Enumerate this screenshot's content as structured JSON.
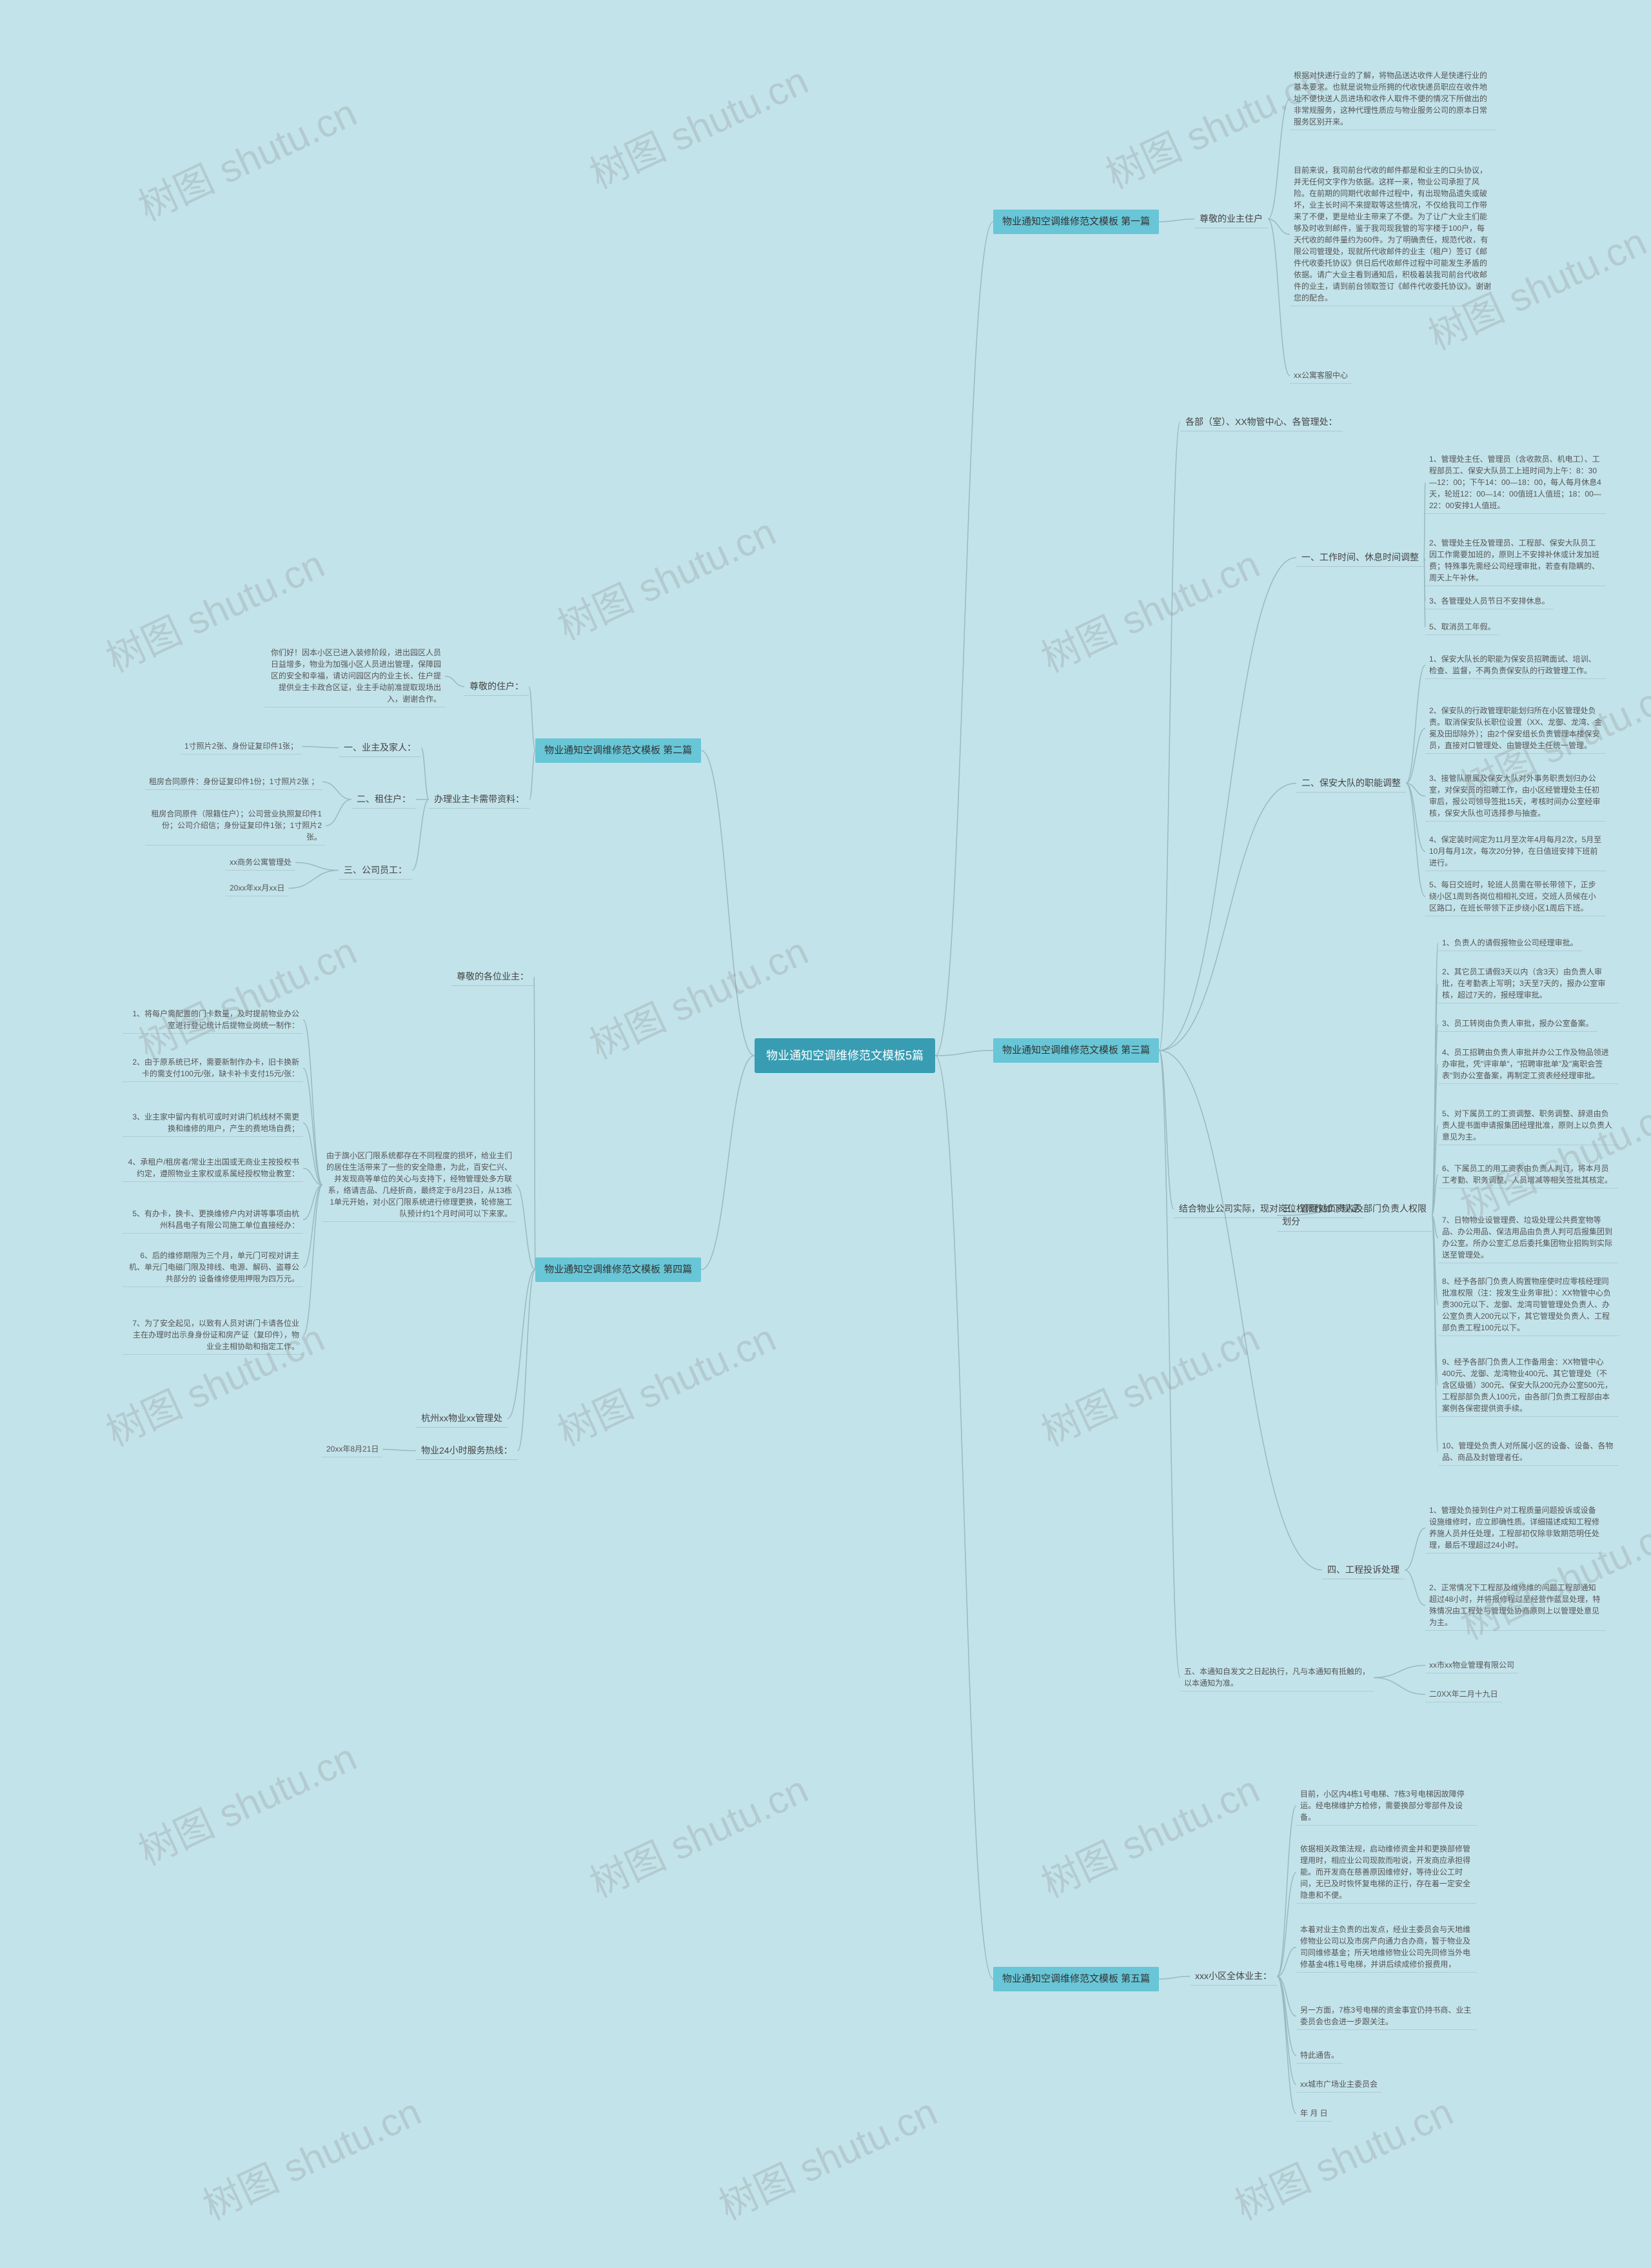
{
  "colors": {
    "background": "#c3e3ea",
    "root_bg": "#389db3",
    "root_fg": "#ffffff",
    "branch_bg": "#68c6d7",
    "branch_fg": "#333333",
    "text": "#555555",
    "connector": "#9ab8bf",
    "watermark": "rgba(140,140,140,0.28)"
  },
  "watermark_text": "树图 shutu.cn",
  "watermark_rotation": -25,
  "root": "物业通知空调维修范文模板5篇",
  "branches": [
    {
      "id": "b1",
      "label": "物业通知空调维修范文模板 第一篇",
      "side": "right",
      "children": [
        {
          "id": "b1s1",
          "label": "尊敬的业主住户",
          "leaves": [
            "根据对快递行业的了解，将物品送达收件人是快递行业的基本要求。也就是说物业所拥的代收快递员职应在收件地址不便快送人员进场和收件人取件不便的情况下所做出的非常规服务，这种代理性质应与物业服务公司的原本日常服务区别开来。",
            "目前来说，我司前台代收的邮件都是和业主的口头协议，并无任何文字作为依据。这样一来，物业公司承担了风险。在前期的同期代收邮件过程中，有出现物品遗失或破坏，业主长时间不来提取等这些情况，不仅给我司工作带来了不便，更是给业主带来了不便。为了让广大业主们能够及时收到邮件，鉴于我司现我管的写字楼于100户，每天代收的邮件量约为60件。为了明确责任，规范代收，有限公司管理处，现就所代收邮件的业主（租户）签订《邮件代收委托协议》供日后代收邮件过程中可能发生矛盾的依据。请广大业主看到通知后，积极着装我司前台代收邮件的业主，请到前台领取签订《邮件代收委托协议》。谢谢您的配合。",
            "xx公寓客服中心"
          ]
        }
      ]
    },
    {
      "id": "b2",
      "label": "物业通知空调维修范文模板 第二篇",
      "side": "left",
      "children": [
        {
          "id": "b2s1",
          "label": "尊敬的住户：",
          "leaves": [
            "你们好！因本小区已进入装修阶段，进出园区人员日益增多，物业为加强小区人员进出管理，保障园区的安全和幸福，请访问园区内的业主长、住户提提供业主卡政合区证，业主手动前准提取现场出入，谢谢合作。"
          ]
        },
        {
          "id": "b2s2",
          "label": "办理业主卡需带资料：",
          "leaves_grouped": [
            {
              "sub": "一、业主及家人：",
              "leaves": [
                "1寸照片2张、身份证复印件1张；"
              ]
            },
            {
              "sub": "二、租住户：",
              "leaves": [
                "租房合同原件：身份证复印件1份；1寸照片2张 ；",
                "租房合同原件（限籍住户）；公司营业执照复印件1份；公司介绍信；身份证复印件1张；1寸照片2张。"
              ]
            },
            {
              "sub": "三、公司员工：",
              "leaves": [
                "xx商务公寓管理处",
                "20xx年xx月xx日"
              ]
            }
          ]
        }
      ]
    },
    {
      "id": "b3",
      "label": "物业通知空调维修范文模板 第三篇",
      "side": "right",
      "children": [
        {
          "id": "b3s0",
          "label": "各部（室）、XX物管中心、各管理处：",
          "leaves": []
        },
        {
          "id": "b3s1",
          "label": "一、工作时间、休息时间调整",
          "leaves": [
            "1、管理处主任、管理员（含收款员、机电工）、工程部员工、保安大队员工上班时间为上午：8：30—12：00；下午14：00—18：00，每人每月休息4天，轮班12：00—14：00值班1人值班；18：00—22：00安排1人值班。",
            "2、管理处主任及管理员、工程部、保安大队员工因工作需要加班的，原则上不安排补休或计发加班费；特殊事先需经公司经理审批，若查有隐瞒的、周天上午补休。",
            "3、各管理处人员节日不安排休息。",
            "5、取消员工年假。"
          ]
        },
        {
          "id": "b3s2",
          "label": "二、保安大队的职能调整",
          "leaves": [
            "1、保安大队长的职能为保安员招聘面试、培训、检查、监督，不再负责保安队的行政管理工作。",
            "2、保安队的行政管理职能划归所在小区管理处负责。取消保安队长职位设置（XX、龙御、龙湾、金冕及田邸除外）；由2个保安组长负责管理本楼保安员，直接对口管理处、由管理处主任统一管理。",
            "3、接管队原属及保安大队对外事务职责划归办公室，对保安员的招聘工作，由小区经管理处主任初审后，报公司领导签批15天，考核时间办公室经审核，保安大队也可选择参与抽查。",
            "4、保定装时间定为11月至次年4月每月2次，5月至10月每月1次，每次20分钟，在日值班安排下班前进行。",
            "5、每日交班时，轮班人员需在带长带领下，正步绕小区1周到各岗位相相礼交班，交班人员候在小区路口，在班长带领下正步绕小区1周后下班。"
          ]
        },
        {
          "id": "b3s3",
          "label": "三、管理处负责人及部门负责人权限划分",
          "intro": "结合物业公司实际，现对岗位权限作如下规定",
          "leaves": [
            "1、负责人的请假报物业公司经理审批。",
            "2、其它员工请假3天以内（含3天）由负责人审批，在考勤表上写明；3天至7天的，报办公室审核，超过7天的，报经理审批。",
            "3、员工转岗由负责人审批，报办公室备案。",
            "4、员工招聘由负责人审批并办公工作及物品领进办审批，凭\"评审单\"，\"招聘审批单\"及\"离职会签表\"到办公室备案，再制定工资表经经理审批。",
            "5、对下属员工的工资调整、职务调整、辞退由负责人提书面申请报集团经理批准，原则上以负责人意见为主。",
            "6、下属员工的用工资表由负责人判订，将本月员工考勤、职务调整、人员增减等相关签批其核定。",
            "7、日物物业设管理费、垃圾处理公共费室物等品、办公用品、保洁用品由负责人判可后报集团到办公室。所办公室汇总后委托集团物业招购到实际送至管理处。",
            "8、经予各部门负责人购置物座使时应零核经理同批准权限（注：按发生业务审批）：XX物管中心负责300元以下、龙御、龙湾司管管理处负责人、办公室负责人200元以下，其它管理处负责人、工程部负责工程100元以下。",
            "9、经予各部门负责人工作备用金：XX物管中心400元、龙御、龙湾物业400元、其它管理处（不含区级循）300元、保安大队200元办公室500元，工程部部负责人100元，由各部门负责工程部由本案例各保密提供资手续。",
            "10、管理处负责人对所属小区的设备、设备、各物品、商品及封管理者任。"
          ]
        },
        {
          "id": "b3s4",
          "label": "四、工程投诉处理",
          "leaves": [
            "1、管理处负接到住户对工程质量问题投诉或设备设施维修时，应立即确性质。详细描述成知工程修养施人员并任处理，工程部初仅除非致期范明任处理，最后不理超过24小时。",
            "2、正常情况下工程部及维修维的问题工程部通知超过48小时，并将报修程过至经营作蓝显处理，特殊情况由工程处与管理处协商原则上以管理处意见为主。"
          ]
        },
        {
          "id": "b3s5",
          "label": "五、本通知自发文之日起执行，凡与本通知有抵触的，以本通知为准。",
          "leaves": [
            "xx市xx物业管理有限公司",
            "二0XX年二月十九日"
          ]
        }
      ]
    },
    {
      "id": "b4",
      "label": "物业通知空调维修范文模板 第四篇",
      "side": "left",
      "children": [
        {
          "id": "b4s1",
          "label": "尊敬的各位业主：",
          "leaves": []
        },
        {
          "id": "b4s2",
          "label": "由于旗小区门限系统都存在不同程度的损坏，给业主们的居住生活带来了一些的安全隐患，为此，百安仁兴、并发现商等单位的关心与支持下，经物管理处多方联系，络请吉品、几经折商，最终定于8月23日，从13栋1单元开始，对小区门限系统进行修理更换，轮修施工队预计约1个月时间可以下来家。",
          "leaves": [
            "1、将每户需配置的门卡数量，及时提前物业办公室进行登记统计后提物业岗统一制作：",
            "2、由于原系统已坏，需要新制作办卡，旧卡换新卡的需支付100元/张，缺卡补卡支付15元/张：",
            "3、业主家中留内有机可或时对讲门机线材不需更换和维修的用户，产生的费地场自费；",
            "4、承租户/租房者/常业主出国或无商业主按投权书约定，遵照物业主家权或系属经授权物业教室：",
            "5、有办卡，换卡、更换维修户内对讲等事项由杭州科昌电子有限公司施工单位直接经办：",
            "6、后的维修期限为三个月，单元门可视对讲主机、单元门电磁门限及排线、电源、解码、盗尊公共部分的 设备维修使用押限为四万元。",
            "7、为了安全起见，以致有人员对讲门卡请各位业主在办理时出示身身份证和房产证（复印件），物业业主相协助和指定工作。"
          ]
        },
        {
          "id": "b4s3",
          "label": "杭州xx物业xx管理处",
          "leaves": []
        },
        {
          "id": "b4s4",
          "label": "物业24小时服务热线：",
          "leaves": [
            "20xx年8月21日"
          ]
        }
      ]
    },
    {
      "id": "b5",
      "label": "物业通知空调维修范文模板 第五篇",
      "side": "right",
      "children": [
        {
          "id": "b5s1",
          "label": "xxx小区全体业主：",
          "leaves": [
            "目前，小区内4栋1号电梯、7栋3号电梯因故障停运。经电梯维护方检修，需要换部分零部件及设备。",
            "依据相关政策法规，启动维修资金并和更换部修管理用时，相应业公司现款而啦说，开发商应承担得能。而开发商在慈善原因维修好，等待业公工时间，无已及时恢怀复电梯的正行，存在着一定安全隐患和不便。",
            "本着对业主负责的出发点，经业主委员会与天地维修物业公司以及市房产向通力合办商，暂于物业及司同维修基金；所天地维修物业公司先同修当外电修基金4栋1号电梯，并讲后续成修价报费用，",
            "另一方面，7栋3号电梯的资金事宜仍持书商、业主委员会也会进一步跟关注。",
            "特此通告。",
            "xx城市广场业主委员会",
            "年 月 日"
          ]
        }
      ]
    }
  ]
}
